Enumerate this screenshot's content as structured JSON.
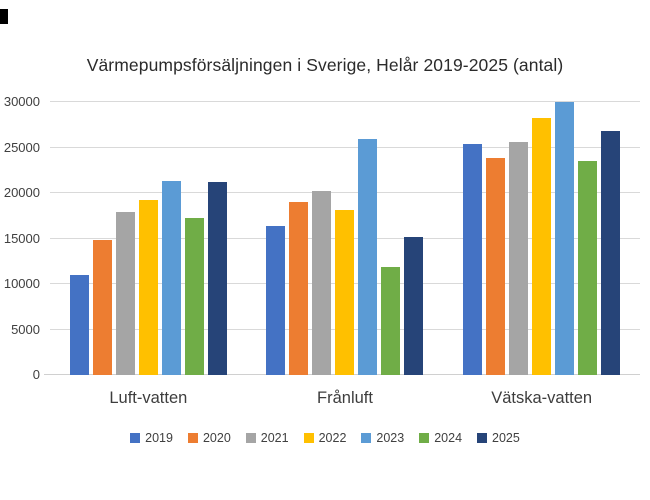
{
  "chart_data": {
    "type": "bar",
    "title": "Värmepumpsförsäljningen i Sverige, Helår 2019-2025 (antal)",
    "categories": [
      "Luft-vatten",
      "Frånluft",
      "Vätska-vatten"
    ],
    "series": [
      {
        "name": "2019",
        "color": "#4472C4",
        "values": [
          11000,
          16400,
          25400
        ]
      },
      {
        "name": "2020",
        "color": "#ED7D31",
        "values": [
          14800,
          19000,
          23800
        ]
      },
      {
        "name": "2021",
        "color": "#A5A5A5",
        "values": [
          17900,
          20200,
          25600
        ]
      },
      {
        "name": "2022",
        "color": "#FFC000",
        "values": [
          19200,
          18100,
          28200
        ]
      },
      {
        "name": "2023",
        "color": "#5B9BD5",
        "values": [
          21300,
          25900,
          30000
        ]
      },
      {
        "name": "2024",
        "color": "#70AD47",
        "values": [
          17200,
          11900,
          23500
        ]
      },
      {
        "name": "2025",
        "color": "#264478",
        "values": [
          21200,
          15200,
          26800
        ]
      }
    ],
    "ylim": [
      0,
      30000
    ],
    "yticks": [
      "0",
      "5000",
      "10000",
      "15000",
      "20000",
      "25000",
      "30000"
    ],
    "ytick_values": [
      0,
      5000,
      10000,
      15000,
      20000,
      25000,
      30000
    ],
    "grid": true,
    "grid_color": "#D9D9D9",
    "text_color": "#404040",
    "legend_position": "bottom"
  }
}
